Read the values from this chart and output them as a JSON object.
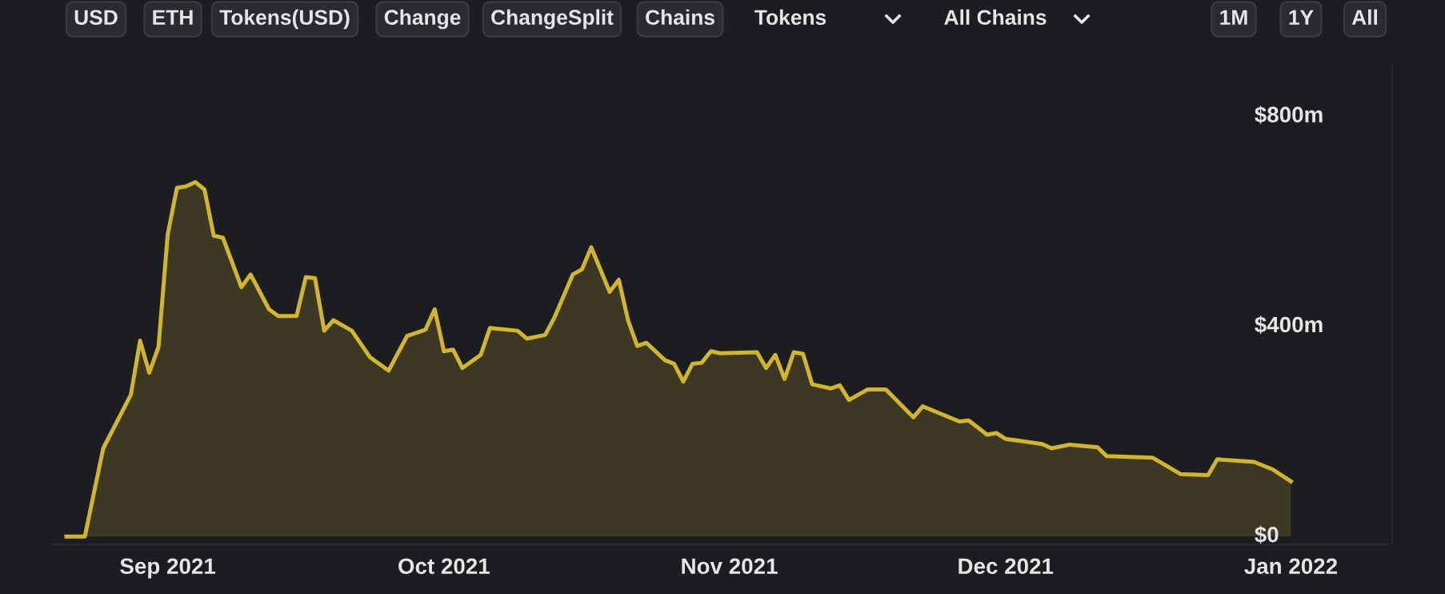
{
  "chart_data": {
    "type": "area",
    "annotations": [
      "USD",
      "ETH",
      "Tokens(USD)",
      "Change",
      "ChangeSplit",
      "Chains",
      "Tokens",
      "All Chains",
      "1M",
      "1Y",
      "All"
    ],
    "x": [
      "2021-08-21",
      "2021-08-23",
      "2021-08-25",
      "2021-08-28",
      "2021-08-29",
      "2021-08-30",
      "2021-08-31",
      "2021-09-01",
      "2021-09-02",
      "2021-09-03",
      "2021-09-04",
      "2021-09-05",
      "2021-09-06",
      "2021-09-07",
      "2021-09-09",
      "2021-09-10",
      "2021-09-12",
      "2021-09-13",
      "2021-09-15",
      "2021-09-16",
      "2021-09-17",
      "2021-09-18",
      "2021-09-19",
      "2021-09-21",
      "2021-09-23",
      "2021-09-25",
      "2021-09-27",
      "2021-09-29",
      "2021-09-30",
      "2021-10-01",
      "2021-10-02",
      "2021-10-03",
      "2021-10-05",
      "2021-10-06",
      "2021-10-09",
      "2021-10-10",
      "2021-10-12",
      "2021-10-13",
      "2021-10-15",
      "2021-10-16",
      "2021-10-17",
      "2021-10-19",
      "2021-10-20",
      "2021-10-21",
      "2021-10-22",
      "2021-10-23",
      "2021-10-25",
      "2021-10-26",
      "2021-10-27",
      "2021-10-28",
      "2021-10-29",
      "2021-10-30",
      "2021-10-31",
      "2021-11-04",
      "2021-11-05",
      "2021-11-06",
      "2021-11-07",
      "2021-11-08",
      "2021-11-09",
      "2021-11-10",
      "2021-11-12",
      "2021-11-13",
      "2021-11-14",
      "2021-11-16",
      "2021-11-18",
      "2021-11-21",
      "2021-11-22",
      "2021-11-26",
      "2021-11-27",
      "2021-11-29",
      "2021-11-30",
      "2021-12-01",
      "2021-12-05",
      "2021-12-06",
      "2021-12-08",
      "2021-12-11",
      "2021-12-12",
      "2021-12-17",
      "2021-12-20",
      "2021-12-23",
      "2021-12-24",
      "2021-12-28",
      "2021-12-30",
      "2022-01-01"
    ],
    "series": [
      {
        "color": "#d1b52a",
        "values": [
          0,
          0,
          168,
          270,
          373,
          312,
          361,
          575,
          664,
          667,
          675,
          661,
          573,
          569,
          475,
          499,
          433,
          420,
          420,
          494,
          492,
          392,
          412,
          392,
          341,
          316,
          382,
          394,
          433,
          353,
          356,
          321,
          346,
          397,
          392,
          377,
          384,
          417,
          499,
          509,
          551,
          466,
          489,
          412,
          363,
          369,
          336,
          329,
          295,
          329,
          331,
          353,
          349,
          351,
          321,
          346,
          300,
          351,
          348,
          290,
          282,
          288,
          260,
          280,
          280,
          227,
          248,
          219,
          221,
          194,
          197,
          186,
          176,
          168,
          175,
          170,
          153,
          150,
          119,
          117,
          147,
          142,
          128,
          105
        ]
      }
    ],
    "xlim": [
      "2021-08-19",
      "2022-01-12"
    ],
    "xticks": [
      {
        "value": "2021-09-01",
        "label": "Sep 2021"
      },
      {
        "value": "2021-10-01",
        "label": "Oct 2021"
      },
      {
        "value": "2021-11-01",
        "label": "Nov 2021"
      },
      {
        "value": "2021-12-01",
        "label": "Dec 2021"
      },
      {
        "value": "2022-01-01",
        "label": "Jan 2022"
      }
    ],
    "ylim": [
      -15,
      900
    ],
    "yticks": [
      {
        "value": 0,
        "label": "$0"
      },
      {
        "value": 400,
        "label": "$400m"
      },
      {
        "value": 800,
        "label": "$800m"
      }
    ],
    "grid": false,
    "legend": false,
    "marker": "none",
    "line_style": "solid"
  }
}
